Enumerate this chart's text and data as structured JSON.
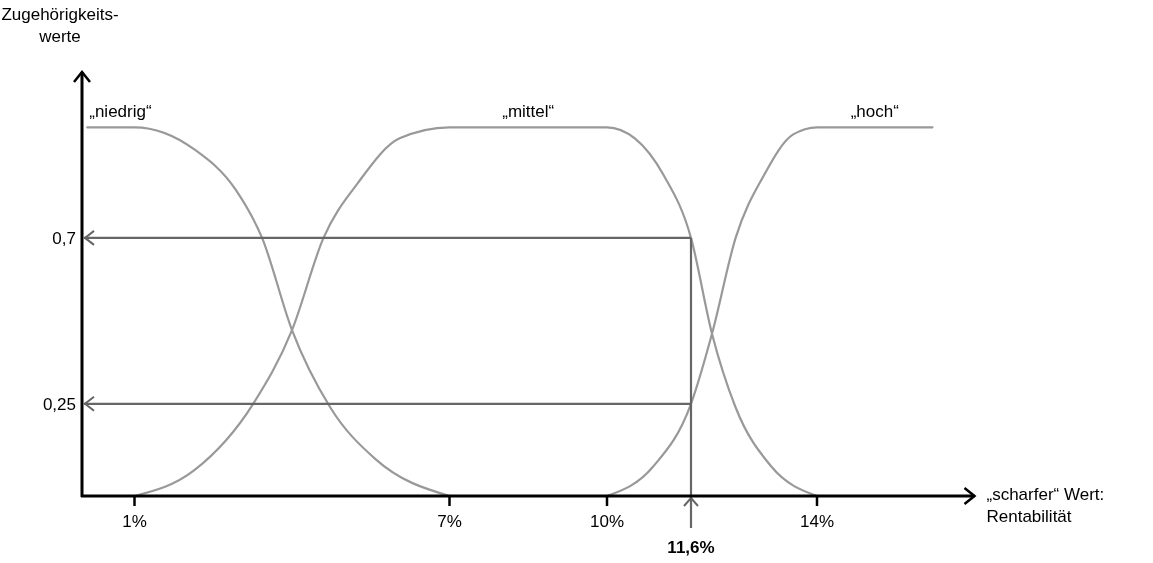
{
  "chart_data": {
    "type": "line",
    "ylabel": "Zugehörigkeits-\nwerte",
    "xlabel": "„scharfer“ Wert:\nRentabilität",
    "xlim": [
      0,
      17
    ],
    "xticks": [
      {
        "value": 1,
        "label": "1%"
      },
      {
        "value": 7,
        "label": "7%"
      },
      {
        "value": 10,
        "label": "10%"
      },
      {
        "value": 14,
        "label": "14%"
      }
    ],
    "ylim": [
      0,
      1.15
    ],
    "yticks": [
      {
        "value": 0.25,
        "label": "0,25"
      },
      {
        "value": 0.7,
        "label": "0,7"
      }
    ],
    "series": [
      {
        "name": "„niedrig“",
        "color": "#999999",
        "x": [
          0.1,
          1,
          2.14,
          2.93,
          3.43,
          4,
          4.73,
          5.59,
          7
        ],
        "values": [
          1,
          1,
          0.94,
          0.83,
          0.7,
          0.45,
          0.24,
          0.1,
          0
        ]
      },
      {
        "name": "„mittel“",
        "color": "#999999",
        "x": [
          1,
          2.14,
          3.26,
          4,
          4.6,
          5.26,
          6.05,
          7,
          10,
          10.53,
          11.08,
          11.6,
          12,
          12.45,
          13.13,
          14
        ],
        "values": [
          0,
          0.07,
          0.25,
          0.45,
          0.7,
          0.85,
          0.97,
          1,
          1,
          0.97,
          0.87,
          0.7,
          0.44,
          0.24,
          0.08,
          0
        ]
      },
      {
        "name": "„hoch“",
        "color": "#999999",
        "x": [
          10,
          10.88,
          11.6,
          12,
          12.45,
          12.99,
          13.54,
          14,
          16.2
        ],
        "values": [
          0,
          0.08,
          0.25,
          0.44,
          0.7,
          0.87,
          0.98,
          1,
          1
        ]
      }
    ],
    "ref_lines": [
      {
        "axis": "y",
        "value": 0.7,
        "color": "#666666"
      },
      {
        "axis": "y",
        "value": 0.25,
        "color": "#666666"
      },
      {
        "axis": "x",
        "value": 11.6,
        "label": "11,6%",
        "color": "#666666"
      }
    ]
  }
}
